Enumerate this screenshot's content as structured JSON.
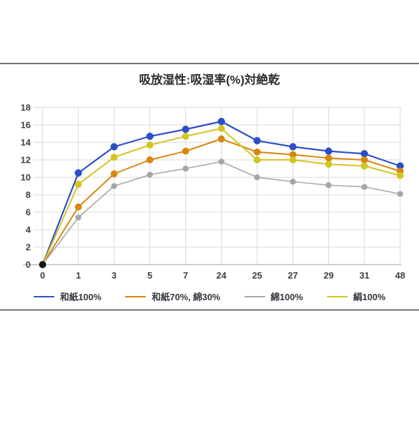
{
  "title": "吸放湿性:吸湿率(%)対絶乾",
  "chart_data": {
    "type": "line",
    "title": "吸放湿性:吸湿率(%)対絶乾",
    "categories": [
      "0",
      "1",
      "3",
      "5",
      "7",
      "24",
      "25",
      "27",
      "29",
      "31",
      "48"
    ],
    "series": [
      {
        "id": "washi-100",
        "name": "和紙100%",
        "color": "#2b4fc6",
        "line_width": 2.2,
        "marker_r": 5.2,
        "values": [
          0,
          10.5,
          13.5,
          14.7,
          15.5,
          16.4,
          14.2,
          13.5,
          13.0,
          12.7,
          11.3
        ]
      },
      {
        "id": "washi70-cotton30",
        "name": "和紙70%, 綿30%",
        "color": "#d9860d",
        "line_width": 2.0,
        "marker_r": 5.0,
        "values": [
          0,
          6.6,
          10.4,
          12.0,
          13.0,
          14.4,
          12.9,
          12.6,
          12.2,
          12.0,
          10.7
        ]
      },
      {
        "id": "cotton-100",
        "name": "綿100%",
        "color": "#a6a6a6",
        "line_width": 1.6,
        "marker_r": 4.3,
        "values": [
          0,
          5.4,
          9.0,
          10.3,
          11.0,
          11.8,
          10.0,
          9.5,
          9.1,
          8.9,
          8.1
        ]
      },
      {
        "id": "silk-100",
        "name": "絹100%",
        "color": "#d3c421",
        "line_width": 2.0,
        "marker_r": 5.0,
        "values": [
          0,
          9.2,
          12.3,
          13.7,
          14.7,
          15.6,
          12.0,
          12.0,
          11.5,
          11.3,
          10.2
        ]
      }
    ],
    "ylim": [
      0,
      18
    ],
    "ytick_step": 2,
    "grid": true,
    "legend_position": "bottom",
    "colors": {
      "gridline": "#d9d9d9",
      "axis_line": "#b3b3b3",
      "tick_label": "#3f3f3f",
      "origin_marker": "#141414",
      "divider": "#73736e"
    }
  }
}
